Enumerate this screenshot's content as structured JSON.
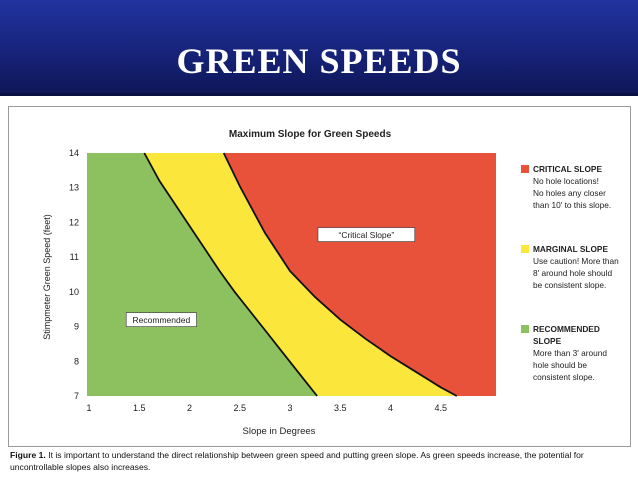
{
  "slide": {
    "title": "GREEN SPEEDS"
  },
  "chart_data": {
    "type": "area",
    "title": "Maximum Slope for Green Speeds",
    "xlabel": "Slope in Degrees",
    "ylabel": "Stimpmeter Green Speed (feet)",
    "xlim": [
      0.98,
      5.05
    ],
    "ylim": [
      7,
      14
    ],
    "xticks": [
      "1",
      "1.5",
      "2",
      "2.5",
      "3",
      "3.5",
      "4",
      "4.5"
    ],
    "yticks": [
      "7",
      "8",
      "9",
      "10",
      "11",
      "12",
      "13",
      "14"
    ],
    "grid": false,
    "legend_position": "right",
    "colors": {
      "critical": "#e8523a",
      "marginal": "#fbe63c",
      "recommended": "#8dc15f",
      "curve": "#111111"
    },
    "series": [
      {
        "name": "Recommended",
        "x": [
          1.55,
          1.7,
          1.85,
          2.0,
          2.15,
          2.3,
          2.45,
          2.6,
          2.75,
          2.9,
          3.05,
          3.27
        ],
        "y": [
          14.0,
          13.2,
          12.55,
          11.9,
          11.25,
          10.6,
          10.0,
          9.45,
          8.9,
          8.35,
          7.8,
          7.0
        ]
      },
      {
        "name": "Critical Slope",
        "x": [
          2.34,
          2.5,
          2.75,
          3.0,
          3.25,
          3.5,
          3.75,
          4.0,
          4.25,
          4.5,
          4.66
        ],
        "y": [
          14.0,
          13.05,
          11.7,
          10.6,
          9.85,
          9.2,
          8.65,
          8.15,
          7.7,
          7.25,
          7.0
        ]
      }
    ],
    "annotations": [
      {
        "text": "Recommended",
        "x": 1.72,
        "y": 9.2
      },
      {
        "text": "“Critical Slope”",
        "x": 3.76,
        "y": 11.65
      }
    ],
    "legend": [
      {
        "title": "CRITICAL SLOPE",
        "lines": [
          "No hole locations!",
          "No holes any closer",
          "than 10' to this slope."
        ]
      },
      {
        "title": "MARGINAL SLOPE",
        "lines": [
          "Use caution! More than",
          "8' around hole should",
          "be consistent slope."
        ]
      },
      {
        "title": "RECOMMENDED",
        "lines": [
          "SLOPE",
          "More than 3' around",
          "hole should be",
          "consistent slope."
        ]
      }
    ]
  },
  "caption": {
    "label": "Figure 1.",
    "text": " It is important to understand the direct relationship between green speed and putting green slope. As green speeds increase, the potential for uncontrollable slopes also increases."
  }
}
